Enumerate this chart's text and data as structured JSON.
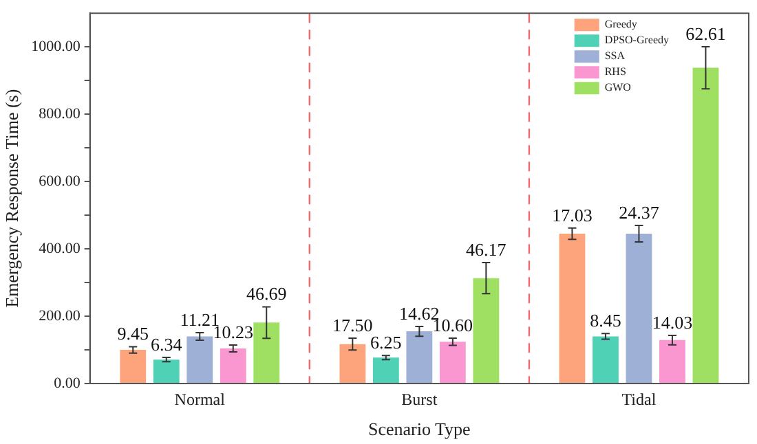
{
  "chart_data": {
    "type": "bar",
    "xlabel": "Scenario Type",
    "ylabel": "Emergency Response Time (s)",
    "categories": [
      "Normal",
      "Burst",
      "Tidal"
    ],
    "series": [
      {
        "name": "Greedy",
        "color": "#fda47c",
        "values": [
          100,
          117,
          445
        ],
        "errors": [
          9.45,
          17.5,
          17.03
        ]
      },
      {
        "name": "DPSO-Greedy",
        "color": "#4fd1b5",
        "values": [
          71,
          77,
          140
        ],
        "errors": [
          6.34,
          6.25,
          8.45
        ]
      },
      {
        "name": "SSA",
        "color": "#9eb0d6",
        "values": [
          140,
          155,
          445
        ],
        "errors": [
          11.21,
          14.62,
          24.37
        ]
      },
      {
        "name": "RHS",
        "color": "#fb97d0",
        "values": [
          104,
          124,
          129
        ],
        "errors": [
          10.23,
          10.6,
          14.03
        ]
      },
      {
        "name": "GWO",
        "color": "#9fdf62",
        "values": [
          181,
          313,
          938
        ],
        "errors": [
          46.69,
          46.17,
          62.61
        ]
      }
    ],
    "annotations": [
      "9.45",
      "6.34",
      "11.21",
      "10.23",
      "46.69",
      "17.50",
      "6.25",
      "14.62",
      "10.60",
      "46.17",
      "17.03",
      "8.45",
      "24.37",
      "14.03",
      "62.61"
    ],
    "ylim": [
      0,
      1100
    ],
    "yticks": [
      {
        "value": 0,
        "label": "0.00"
      },
      {
        "value": 100,
        "label": null
      },
      {
        "value": 200,
        "label": "200.00"
      },
      {
        "value": 300,
        "label": null
      },
      {
        "value": 400,
        "label": "400.00"
      },
      {
        "value": 500,
        "label": null
      },
      {
        "value": 600,
        "label": "600.00"
      },
      {
        "value": 700,
        "label": null
      },
      {
        "value": 800,
        "label": "800.00"
      },
      {
        "value": 900,
        "label": null
      },
      {
        "value": 1000,
        "label": "1000.00"
      }
    ],
    "grid": false,
    "legend": "top right"
  }
}
